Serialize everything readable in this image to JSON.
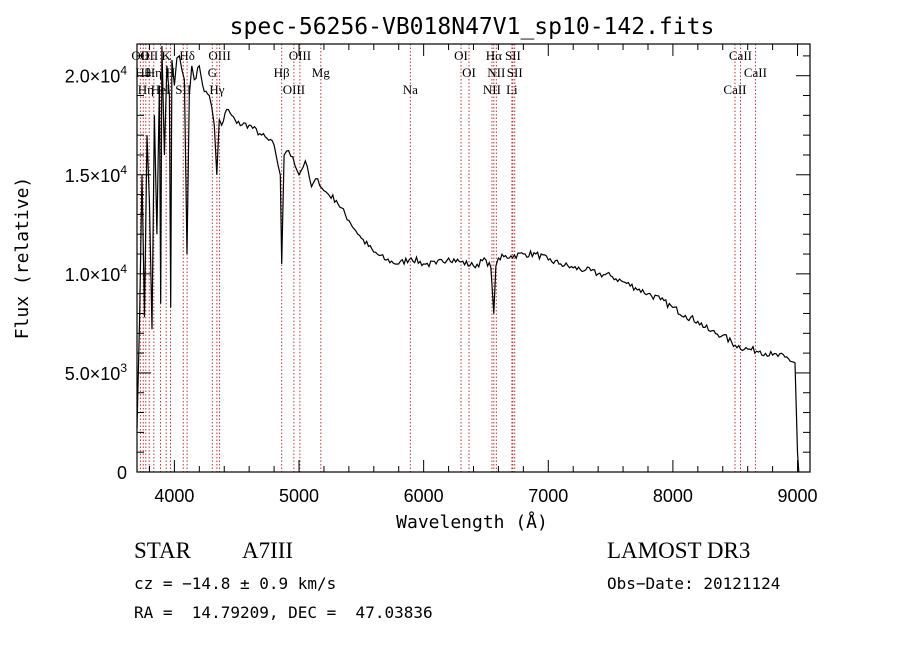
{
  "chart_data": {
    "type": "line",
    "title": "spec-56256-VB018N47V1_sp10-142.fits",
    "xlabel": "Wavelength (Å)",
    "ylabel": "Flux (relative)",
    "xlim": [
      3700,
      9100
    ],
    "ylim": [
      0,
      21600
    ],
    "x_ticks": [
      4000,
      5000,
      6000,
      7000,
      8000,
      9000
    ],
    "x_tick_labels": [
      "4000",
      "5000",
      "6000",
      "7000",
      "8000",
      "9000"
    ],
    "y_ticks": [
      0,
      5000,
      10000,
      15000,
      20000
    ],
    "y_tick_labels": [
      {
        "mant": "0",
        "exp": ""
      },
      {
        "mant": "5.0×10",
        "exp": "3"
      },
      {
        "mant": "1.0×10",
        "exp": "4"
      },
      {
        "mant": "1.5×10",
        "exp": "4"
      },
      {
        "mant": "2.0×10",
        "exp": "4"
      }
    ],
    "series": [
      {
        "name": "spectrum",
        "x": [
          3700,
          3720,
          3740,
          3760,
          3780,
          3800,
          3820,
          3840,
          3860,
          3880,
          3890,
          3900,
          3920,
          3940,
          3960,
          3970,
          3980,
          4000,
          4020,
          4040,
          4060,
          4080,
          4101,
          4120,
          4140,
          4160,
          4200,
          4240,
          4280,
          4300,
          4320,
          4340,
          4360,
          4380,
          4420,
          4460,
          4500,
          4600,
          4700,
          4800,
          4850,
          4861,
          4880,
          4900,
          4950,
          5000,
          5050,
          5100,
          5150,
          5200,
          5300,
          5400,
          5500,
          5600,
          5700,
          5800,
          5900,
          6000,
          6100,
          6200,
          6300,
          6400,
          6500,
          6540,
          6563,
          6580,
          6600,
          6700,
          6800,
          6900,
          7000,
          7100,
          7200,
          7300,
          7400,
          7500,
          7600,
          7700,
          7800,
          7900,
          8000,
          8100,
          8200,
          8300,
          8400,
          8500,
          8600,
          8700,
          8800,
          8900,
          8980,
          9000,
          9010
        ],
        "y": [
          2200,
          7500,
          15000,
          7800,
          17000,
          13500,
          7200,
          18000,
          12000,
          19500,
          8500,
          21500,
          16000,
          20500,
          19000,
          8300,
          20800,
          19500,
          20900,
          21000,
          20300,
          19800,
          11000,
          19000,
          20500,
          19800,
          20500,
          19200,
          19000,
          18400,
          17500,
          15000,
          17800,
          17500,
          18300,
          18000,
          17600,
          17500,
          17000,
          16500,
          15000,
          10500,
          16000,
          16200,
          15900,
          15000,
          15700,
          14400,
          14800,
          14200,
          13700,
          12700,
          11800,
          11100,
          10700,
          10500,
          10800,
          10500,
          10500,
          10800,
          10600,
          10400,
          10700,
          10300,
          8000,
          10400,
          10800,
          10900,
          11000,
          11000,
          10700,
          10500,
          10300,
          10200,
          10000,
          9900,
          9600,
          9300,
          9000,
          8700,
          8300,
          7900,
          7600,
          7100,
          6900,
          6400,
          6200,
          6100,
          5900,
          5800,
          5500,
          1000,
          0
        ]
      }
    ],
    "spectral_lines": [
      {
        "x": 3727,
        "label": "OII"
      },
      {
        "x": 3750,
        "label": "Hθ"
      },
      {
        "x": 3771,
        "label": "Hη"
      },
      {
        "x": 3798,
        "label": "OII"
      },
      {
        "x": 3835,
        "label": "Hη"
      },
      {
        "x": 3889,
        "label": "HeI"
      },
      {
        "x": 3934,
        "label": "K"
      },
      {
        "x": 3969,
        "label": "H"
      },
      {
        "x": 4071,
        "label": "SII"
      },
      {
        "x": 4102,
        "label": "Hδ"
      },
      {
        "x": 4304,
        "label": "G"
      },
      {
        "x": 4341,
        "label": "Hγ"
      },
      {
        "x": 4363,
        "label": "OIII"
      },
      {
        "x": 4861,
        "label": "Hβ"
      },
      {
        "x": 4959,
        "label": "OIII"
      },
      {
        "x": 5007,
        "label": "OIII"
      },
      {
        "x": 5175,
        "label": "Mg"
      },
      {
        "x": 5893,
        "label": "Na"
      },
      {
        "x": 6300,
        "label": "OI"
      },
      {
        "x": 6364,
        "label": "OI"
      },
      {
        "x": 6548,
        "label": "NII"
      },
      {
        "x": 6563,
        "label": "Hα"
      },
      {
        "x": 6583,
        "label": "NII"
      },
      {
        "x": 6708,
        "label": "Li"
      },
      {
        "x": 6716,
        "label": "SII"
      },
      {
        "x": 6731,
        "label": "SII"
      },
      {
        "x": 8498,
        "label": "CaII"
      },
      {
        "x": 8542,
        "label": "CaII"
      },
      {
        "x": 8662,
        "label": "CaII"
      }
    ]
  },
  "info": {
    "object_type": "STAR",
    "subclass": "A7III",
    "survey": "LAMOST DR3",
    "cz": "cz = −14.8 ± 0.9 km/s",
    "obs_date": "Obs−Date: 20121124",
    "coords": "RA =  14.79209, DEC =  47.03836"
  },
  "colors": {
    "spectrum": "#000000",
    "line_markers": "#b22222",
    "axes": "#000000"
  }
}
